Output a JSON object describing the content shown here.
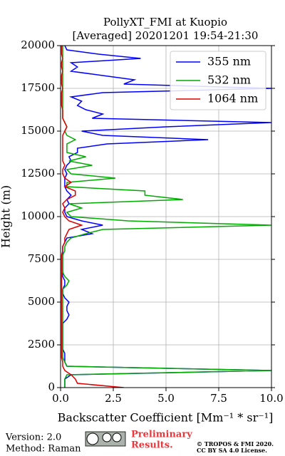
{
  "chart_data": {
    "type": "line",
    "title": [
      "PollyXT_FMI at Kuopio",
      "[Averaged] 20201201 19:54-21:30"
    ],
    "x_label": "Backscatter Coefficient [Mm⁻¹ * sr⁻¹]",
    "y_label": "Height (m)",
    "y": [
      0,
      250,
      500,
      750,
      1000,
      1250,
      1500,
      1750,
      2000,
      2250,
      2500,
      2750,
      3000,
      3250,
      3500,
      3750,
      4000,
      4250,
      4500,
      4750,
      5000,
      5250,
      5500,
      5750,
      6000,
      6250,
      6500,
      6750,
      7000,
      7250,
      7500,
      7750,
      8000,
      8250,
      8500,
      8750,
      9000,
      9250,
      9500,
      9750,
      10000,
      10250,
      10500,
      10750,
      11000,
      11250,
      11500,
      11750,
      12000,
      12250,
      12500,
      12750,
      13000,
      13250,
      13500,
      13750,
      14000,
      14250,
      14500,
      14750,
      15000,
      15250,
      15500,
      15750,
      16000,
      16250,
      16500,
      16750,
      17000,
      17250,
      17500,
      17750,
      18000,
      18250,
      18500,
      18750,
      19000,
      19250,
      19500,
      19750,
      20000
    ],
    "series": [
      {
        "name": "355 nm",
        "color": "#0000ff",
        "values": [
          0.2,
          0.2,
          0.2,
          0.5,
          10,
          0.3,
          0.2,
          0.2,
          0.2,
          0.1,
          0.1,
          0.1,
          0.1,
          0.1,
          0.1,
          0.1,
          0.3,
          0.4,
          0.3,
          0.3,
          0.4,
          0.2,
          0.1,
          0.1,
          0.2,
          0.2,
          0.1,
          0.1,
          0.1,
          0.1,
          0.1,
          0.1,
          0.1,
          0.1,
          0.2,
          0.3,
          1.5,
          1.0,
          2.0,
          1.0,
          0.3,
          0.2,
          0.2,
          0.4,
          0.3,
          0.5,
          0.3,
          0.2,
          0.2,
          0.2,
          0.3,
          0.2,
          0.3,
          0.5,
          0.4,
          0.8,
          0.8,
          2.2,
          7.0,
          2.0,
          1.0,
          5.0,
          10,
          1.5,
          2.0,
          1.2,
          0.8,
          1.0,
          0.5,
          2.0,
          10,
          3.0,
          3.5,
          2.0,
          0.5,
          0.8,
          0.5,
          3.8,
          1.8,
          0.3,
          0.2
        ]
      },
      {
        "name": "532 nm",
        "color": "#00aa00",
        "values": [
          0.2,
          0.2,
          0.2,
          0.3,
          10,
          0.3,
          0.2,
          0.1,
          0.1,
          0.1,
          0.1,
          0.1,
          0.1,
          0.1,
          0.1,
          0.1,
          0.1,
          0.1,
          0.1,
          0.1,
          0.1,
          0.1,
          0.1,
          0.1,
          0.3,
          0.4,
          0.2,
          0.1,
          0.1,
          0.1,
          0.1,
          0.1,
          0.2,
          0.2,
          0.3,
          0.5,
          1.2,
          2.0,
          10,
          3.2,
          0.5,
          0.3,
          1.0,
          0.4,
          5.8,
          4.0,
          4.0,
          0.3,
          0.3,
          2.6,
          0.5,
          0.3,
          1.5,
          0.4,
          1.2,
          0.3,
          0.3,
          0.3,
          0.7,
          0.3,
          0.2,
          0.3,
          0.2,
          0.1,
          0.1,
          0.1,
          0.1,
          0.1,
          0.1,
          0.1,
          0.1,
          0.1,
          0.1,
          0.1,
          0.1,
          0.1,
          0.1,
          0.1,
          0.1,
          0.1,
          0.1
        ]
      },
      {
        "name": "1064 nm",
        "color": "#dd0000",
        "values": [
          3.0,
          0.8,
          0.7,
          0.5,
          0.2,
          0.1,
          0.1,
          0.05,
          0.05,
          0.05,
          0.05,
          0.05,
          0.05,
          0.05,
          0.05,
          0.05,
          0.05,
          0.05,
          0.05,
          0.05,
          0.05,
          0.05,
          0.05,
          0.05,
          0.05,
          0.05,
          0.05,
          0.05,
          0.05,
          0.05,
          0.05,
          0.05,
          0.1,
          0.1,
          0.2,
          0.2,
          0.3,
          0.4,
          1.0,
          0.4,
          0.2,
          0.1,
          0.2,
          0.1,
          0.3,
          0.7,
          0.7,
          0.2,
          0.5,
          0.2,
          0.1,
          0.1,
          0.2,
          0.1,
          0.1,
          0.1,
          0.1,
          0.1,
          0.1,
          0.1,
          0.2,
          0.3,
          0.2,
          0.1,
          0.1,
          0.1,
          0.05,
          0.05,
          0.05,
          0.05,
          0.1,
          0.05,
          0.05,
          0.05,
          0.1,
          0.05,
          0.05,
          0.1,
          0.05,
          0.05,
          0.05
        ]
      }
    ],
    "xlim": [
      0,
      10
    ],
    "xticks": [
      {
        "value": 0,
        "label": "0.0"
      },
      2.5,
      {
        "value": 5,
        "label": "5.0"
      },
      7.5,
      {
        "value": 10,
        "label": "10.0"
      }
    ],
    "ylim": [
      0,
      20000
    ],
    "yticks": [
      0,
      2500,
      5000,
      7500,
      10000,
      12500,
      15000,
      17500,
      20000
    ],
    "grid": true,
    "legend": "upper right"
  },
  "footer": {
    "version": "Version: 2.0",
    "method": "Method: Raman",
    "notice": [
      "Preliminary",
      "Results."
    ],
    "copyright": [
      "© TROPOS & FMI 2020.",
      "CC BY SA 4.0 License."
    ]
  }
}
